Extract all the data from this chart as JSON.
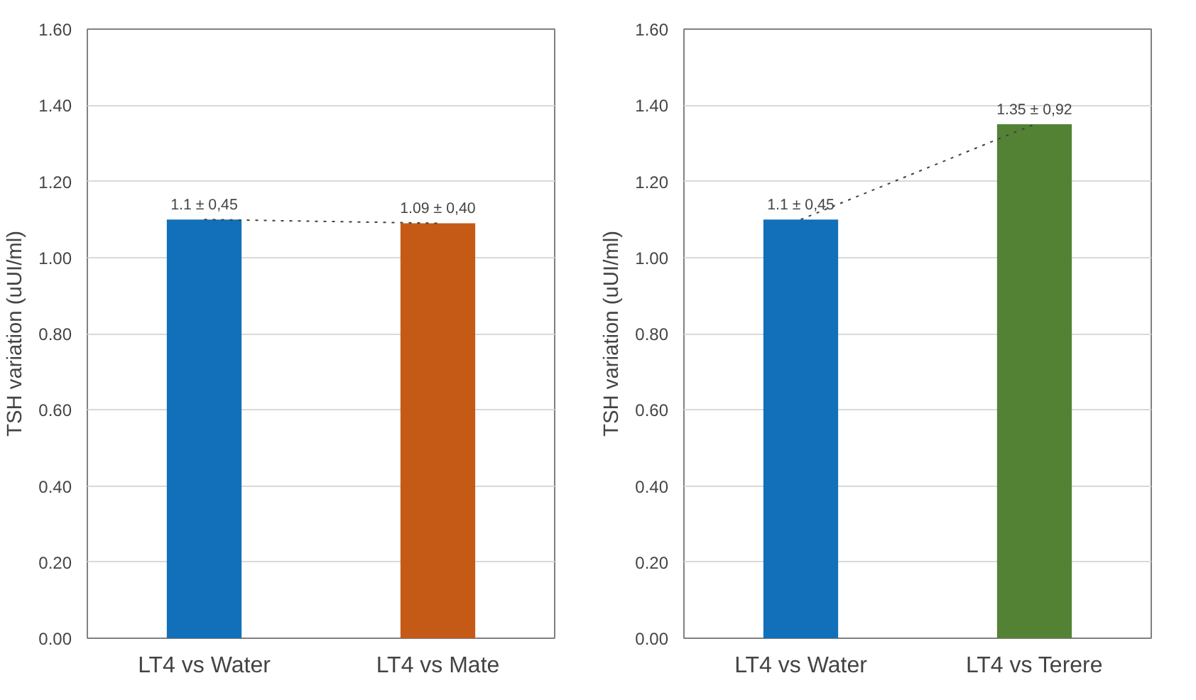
{
  "chart_data": [
    {
      "type": "bar",
      "ylabel": "TSH variation (uUI/ml)",
      "categories": [
        "LT4 vs Water",
        "LT4 vs Mate"
      ],
      "series": [
        {
          "colors": [
            "#1170b9",
            "#c55a17"
          ],
          "values": [
            1.1,
            1.09
          ],
          "value_labels": [
            "1.1 ± 0,45",
            "1.09 ± 0,40"
          ]
        },
        {
          "type": "line",
          "x": [
            "LT4 vs Water",
            "LT4 vs Mate"
          ],
          "color": "#404040",
          "line_style": "dotted",
          "values": [
            1.1,
            1.09
          ]
        }
      ],
      "ylim": [
        0,
        1.6
      ],
      "yticks": [
        {
          "value": 0,
          "label": "0.00"
        },
        {
          "value": 0.2,
          "label": "0.20"
        },
        {
          "value": 0.4,
          "label": "0.40"
        },
        {
          "value": 0.6,
          "label": "0.60"
        },
        {
          "value": 0.8,
          "label": "0.80"
        },
        {
          "value": 1.0,
          "label": "1.00"
        },
        {
          "value": 1.2,
          "label": "1.20"
        },
        {
          "value": 1.4,
          "label": "1.40"
        },
        {
          "value": 1.6,
          "label": "1.60"
        }
      ],
      "grid": "y"
    },
    {
      "type": "bar",
      "ylabel": "TSH variation (uUI/ml)",
      "categories": [
        "LT4 vs Water",
        "LT4 vs Terere"
      ],
      "series": [
        {
          "colors": [
            "#1170b9",
            "#548235"
          ],
          "values": [
            1.1,
            1.35
          ],
          "value_labels": [
            "1.1 ± 0,45",
            "1.35 ± 0,92"
          ]
        },
        {
          "type": "line",
          "x": [
            "LT4 vs Water",
            "LT4 vs Terere"
          ],
          "color": "#404040",
          "line_style": "dotted",
          "values": [
            1.1,
            1.35
          ]
        }
      ],
      "ylim": [
        0,
        1.6
      ],
      "yticks": [
        {
          "value": 0,
          "label": "0.00"
        },
        {
          "value": 0.2,
          "label": "0.20"
        },
        {
          "value": 0.4,
          "label": "0.40"
        },
        {
          "value": 0.6,
          "label": "0.60"
        },
        {
          "value": 0.8,
          "label": "0.80"
        },
        {
          "value": 1.0,
          "label": "1.00"
        },
        {
          "value": 1.2,
          "label": "1.20"
        },
        {
          "value": 1.4,
          "label": "1.40"
        },
        {
          "value": 1.6,
          "label": "1.60"
        }
      ],
      "grid": "y"
    }
  ]
}
